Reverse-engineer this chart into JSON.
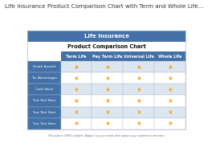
{
  "title": "Life Insurance Product Comparison Chart with Term and Whole Life...",
  "header_banner": "Life Insurance",
  "subtitle": "Product Comparison Chart",
  "col_headers": [
    "Term Life",
    "Pay Term Life",
    "Universal Life",
    "Whole Life"
  ],
  "row_headers": [
    "Death Benefit",
    "Tax Advantages",
    "Cash Value",
    "Your Text Here",
    "Your Text Here",
    "Your Text Here"
  ],
  "n_rows": 6,
  "n_cols": 4,
  "header_bg": "#4472a8",
  "row_header_bg": "#4472a8",
  "row_bg_odd": "#dce6f1",
  "row_bg_even": "#ffffff",
  "grid_line_color": "#b0b8c8",
  "star_color": "#f5a623",
  "title_color": "#333333",
  "subtitle_color": "#111111",
  "header_text_color": "#ffffff",
  "row_header_text_color": "#ffffff",
  "footer_text": "This slide is 100% editable. Adapt it to your needs and capture your audience's attention.",
  "bg_color": "#ffffff",
  "title_fontsize": 5.2,
  "subtitle_fontsize": 4.8,
  "banner_fontsize": 5.0,
  "header_fontsize": 3.5,
  "row_header_fontsize": 3.0,
  "cell_fontsize": 5.5,
  "footer_fontsize": 2.3
}
